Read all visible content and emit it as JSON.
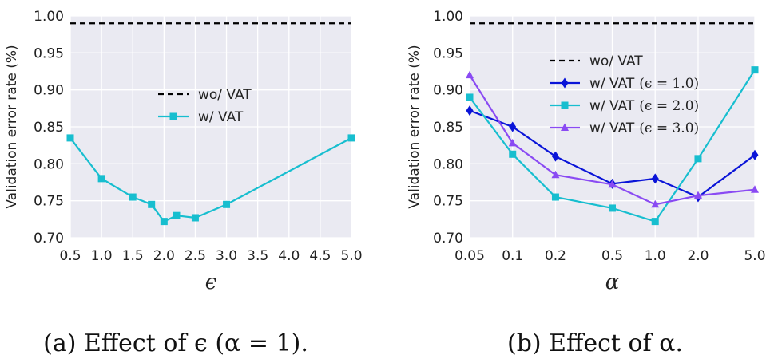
{
  "chart_data": [
    {
      "type": "line",
      "ylabel": "Validation error rate (%)",
      "xlabel": "ϵ",
      "caption": "(a) Effect of ϵ (α = 1).",
      "xlim": [
        0.5,
        5.0
      ],
      "ylim": [
        0.7,
        1.0
      ],
      "x_ticks": [
        "0.5",
        "1.0",
        "1.5",
        "2.0",
        "2.5",
        "3.0",
        "3.5",
        "4.0",
        "4.5",
        "5.0"
      ],
      "y_ticks": [
        "0.70",
        "0.75",
        "0.80",
        "0.85",
        "0.90",
        "0.95",
        "1.00"
      ],
      "grid": true,
      "legend_position": "center",
      "series": [
        {
          "name": "wo/ VAT",
          "style": "dashed",
          "color": "#000000",
          "x": [
            0.5,
            5.0
          ],
          "y": [
            0.99,
            0.99
          ]
        },
        {
          "name": "w/ VAT",
          "style": "solid",
          "marker": "square",
          "color": "#17becf",
          "x": [
            0.5,
            1.0,
            1.5,
            1.8,
            2.0,
            2.2,
            2.5,
            3.0,
            5.0
          ],
          "y": [
            0.835,
            0.78,
            0.755,
            0.745,
            0.722,
            0.73,
            0.727,
            0.745,
            0.835
          ]
        }
      ]
    },
    {
      "type": "line",
      "ylabel": "Validation error rate (%)",
      "xlabel": "α",
      "caption": "(b) Effect of α.",
      "x_scale": "log",
      "xlim": [
        0.05,
        5.0
      ],
      "ylim": [
        0.7,
        1.0
      ],
      "x_ticks": [
        "0.05",
        "0.1",
        "0.2",
        "0.5",
        "1.0",
        "2.0",
        "5.0"
      ],
      "y_ticks": [
        "0.70",
        "0.75",
        "0.80",
        "0.85",
        "0.90",
        "0.95",
        "1.00"
      ],
      "grid": true,
      "legend_position": "upper-center",
      "series": [
        {
          "name": "wo/ VAT",
          "style": "dashed",
          "color": "#000000",
          "x": [
            0.05,
            5.0
          ],
          "y": [
            0.99,
            0.99
          ]
        },
        {
          "name": "w/ VAT",
          "param": "(ϵ = 1.0)",
          "style": "solid",
          "marker": "diamond",
          "color": "#0a14d8",
          "x": [
            0.05,
            0.1,
            0.2,
            0.5,
            1.0,
            2.0,
            5.0
          ],
          "y": [
            0.872,
            0.85,
            0.81,
            0.773,
            0.78,
            0.755,
            0.812
          ]
        },
        {
          "name": "w/ VAT",
          "param": "(ϵ = 2.0)",
          "style": "solid",
          "marker": "square",
          "color": "#17becf",
          "x": [
            0.05,
            0.1,
            0.2,
            0.5,
            1.0,
            2.0,
            5.0
          ],
          "y": [
            0.89,
            0.813,
            0.755,
            0.74,
            0.722,
            0.807,
            0.927
          ]
        },
        {
          "name": "w/ VAT",
          "param": "(ϵ = 3.0)",
          "style": "solid",
          "marker": "triangle",
          "color": "#8a4af3",
          "x": [
            0.05,
            0.1,
            0.2,
            0.5,
            1.0,
            2.0,
            5.0
          ],
          "y": [
            0.92,
            0.828,
            0.785,
            0.772,
            0.745,
            0.757,
            0.765
          ]
        }
      ]
    }
  ]
}
